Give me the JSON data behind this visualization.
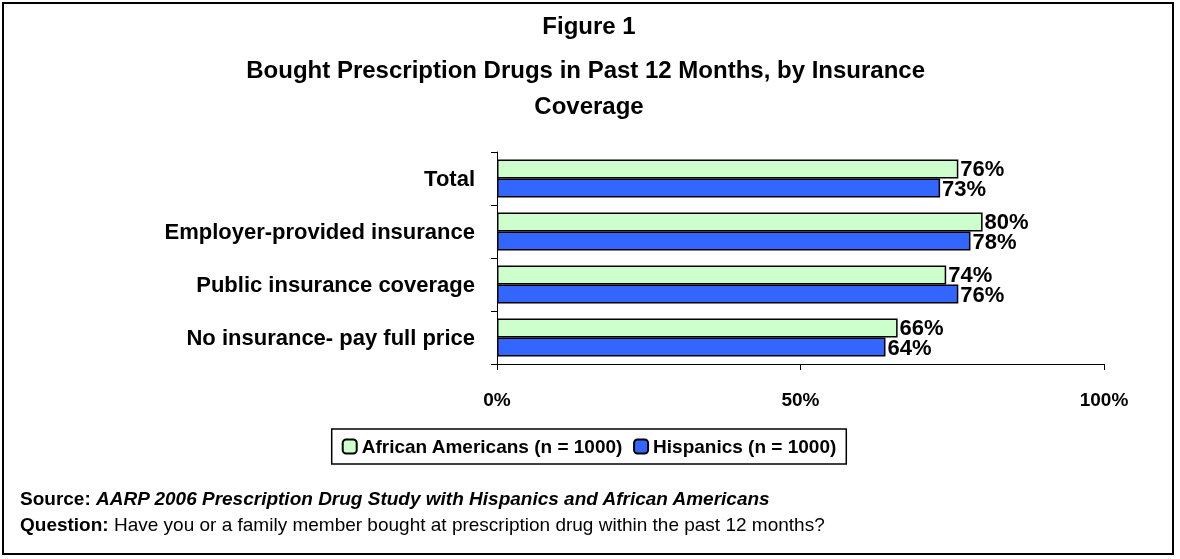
{
  "chart_data": {
    "type": "bar",
    "orientation": "horizontal",
    "title": "Figure 1",
    "subtitle": "Bought Prescription Drugs in Past 12 Months, by Insurance Coverage",
    "categories": [
      "Total",
      "Employer-provided insurance",
      "Public insurance coverage",
      "No insurance- pay full price"
    ],
    "series": [
      {
        "name": "African Americans (n = 1000)",
        "color": "#ccffcc",
        "values": [
          76,
          80,
          74,
          66
        ],
        "value_labels": [
          "76%",
          "80%",
          "74%",
          "66%"
        ]
      },
      {
        "name": "Hispanics (n = 1000)",
        "color": "#3366ff",
        "values": [
          73,
          78,
          76,
          64
        ],
        "value_labels": [
          "73%",
          "78%",
          "76%",
          "64%"
        ]
      }
    ],
    "xlim": [
      0,
      100
    ],
    "xticks": [
      {
        "value": 0,
        "label": "0%"
      },
      {
        "value": 50,
        "label": "50%"
      },
      {
        "value": 100,
        "label": "100%"
      }
    ],
    "grid": false,
    "legend": "bottom",
    "annotations": [
      "Source: AARP 2006 Prescription Drug Study with Hispanics and African Americans",
      "Question: Have you or a family member bought at prescription drug within the past 12 months?"
    ]
  }
}
